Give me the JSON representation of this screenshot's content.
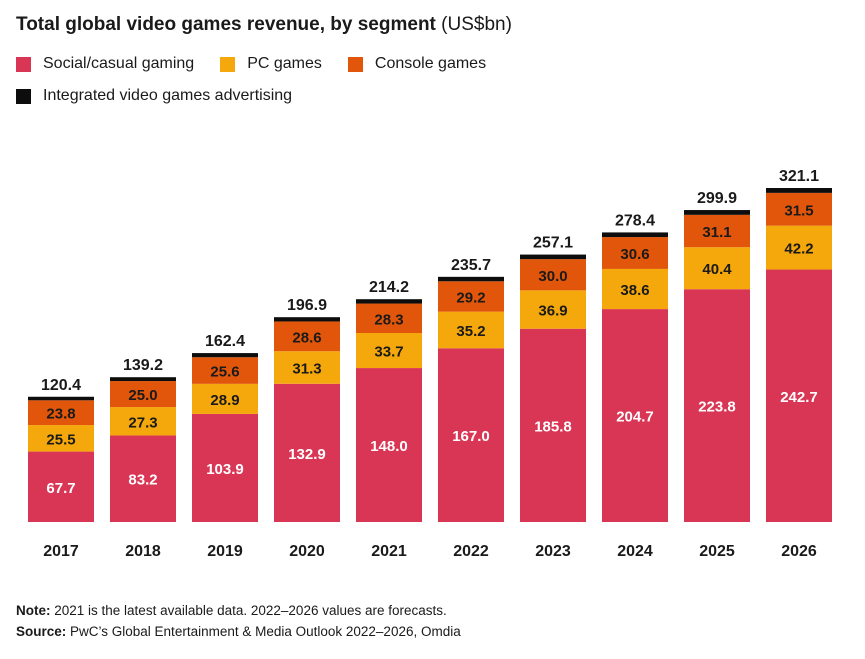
{
  "colors": {
    "social": "#d93655",
    "pc": "#f5a80c",
    "console": "#e2560b",
    "advertising": "#0d0d0d"
  },
  "chart_data": {
    "type": "bar",
    "stacked": true,
    "title": "Total global video games revenue, by segment",
    "unit": "(US$bn)",
    "categories": [
      "2017",
      "2018",
      "2019",
      "2020",
      "2021",
      "2022",
      "2023",
      "2024",
      "2025",
      "2026"
    ],
    "series": [
      {
        "name": "Social/casual gaming",
        "color_key": "social",
        "values": [
          67.7,
          83.2,
          103.9,
          132.9,
          148.0,
          167.0,
          185.8,
          204.7,
          223.8,
          242.7
        ]
      },
      {
        "name": "PC games",
        "color_key": "pc",
        "values": [
          25.5,
          27.3,
          28.9,
          31.3,
          33.7,
          35.2,
          36.9,
          38.6,
          40.4,
          42.2
        ]
      },
      {
        "name": "Console games",
        "color_key": "console",
        "values": [
          23.8,
          25.0,
          25.6,
          28.6,
          28.3,
          29.2,
          30.0,
          30.6,
          31.1,
          31.5
        ]
      },
      {
        "name": "Integrated video games advertising",
        "color_key": "advertising",
        "values": [
          3.4,
          3.7,
          4.0,
          4.1,
          4.2,
          4.3,
          4.4,
          4.5,
          4.6,
          4.7
        ]
      }
    ],
    "value_labels": {
      "social": [
        "67.7",
        "83.2",
        "103.9",
        "132.9",
        "148.0",
        "167.0",
        "185.8",
        "204.7",
        "223.8",
        "242.7"
      ],
      "pc": [
        "25.5",
        "27.3",
        "28.9",
        "31.3",
        "33.7",
        "35.2",
        "36.9",
        "38.6",
        "40.4",
        "42.2"
      ],
      "console": [
        "23.8",
        "25.0",
        "25.6",
        "28.6",
        "28.3",
        "29.2",
        "30.0",
        "30.6",
        "31.1",
        "31.5"
      ]
    },
    "totals": [
      "120.4",
      "139.2",
      "162.4",
      "196.9",
      "214.2",
      "235.7",
      "257.1",
      "278.4",
      "299.9",
      "321.1"
    ],
    "ylim": [
      0,
      321.1
    ],
    "xlabel": "",
    "ylabel": ""
  },
  "legend": [
    {
      "label": "Social/casual gaming",
      "color_key": "social"
    },
    {
      "label": "PC games",
      "color_key": "pc"
    },
    {
      "label": "Console games",
      "color_key": "console"
    },
    {
      "label": "Integrated video games advertising",
      "color_key": "advertising"
    }
  ],
  "footnotes": {
    "note_label": "Note:",
    "note_text": " 2021 is the latest available data. 2022–2026 values are forecasts.",
    "source_label": "Source:",
    "source_text": " PwC’s Global Entertainment & Media Outlook 2022–2026, Omdia"
  }
}
